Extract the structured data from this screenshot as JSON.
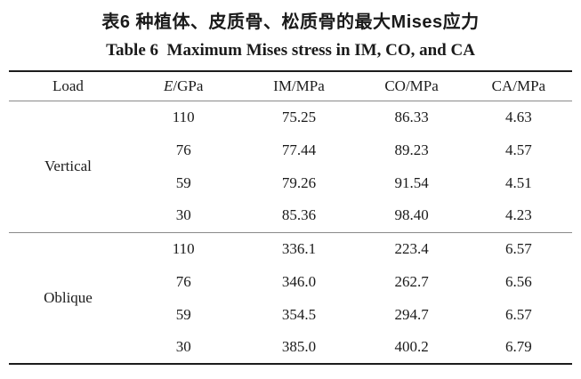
{
  "page": {
    "title_zh": "表6 种植体、皮质骨、松质骨的最大Mises应力",
    "title_en": "Table 6  Maximum Mises stress in IM, CO, and CA"
  },
  "header": {
    "load": "Load",
    "e_italic": "E",
    "e_unit": "/GPa",
    "im": "IM/MPa",
    "co": "CO/MPa",
    "ca": "CA/MPa"
  },
  "sections": [
    {
      "load_label": "Vertical",
      "rows": [
        {
          "e": "110",
          "im": "75.25",
          "co": "86.33",
          "ca": "4.63"
        },
        {
          "e": "76",
          "im": "77.44",
          "co": "89.23",
          "ca": "4.57"
        },
        {
          "e": "59",
          "im": "79.26",
          "co": "91.54",
          "ca": "4.51"
        },
        {
          "e": "30",
          "im": "85.36",
          "co": "98.40",
          "ca": "4.23"
        }
      ]
    },
    {
      "load_label": "Oblique",
      "rows": [
        {
          "e": "110",
          "im": "336.1",
          "co": "223.4",
          "ca": "6.57"
        },
        {
          "e": "76",
          "im": "346.0",
          "co": "262.7",
          "ca": "6.56"
        },
        {
          "e": "59",
          "im": "354.5",
          "co": "294.7",
          "ca": "6.57"
        },
        {
          "e": "30",
          "im": "385.0",
          "co": "400.2",
          "ca": "6.79"
        }
      ]
    }
  ],
  "chart_data": {
    "type": "table",
    "title": "Table 6 Maximum Mises stress in IM, CO, and CA",
    "title_zh": "表6 种植体、皮质骨、松质骨的最大Mises应力",
    "columns": [
      "Load",
      "E/GPa",
      "IM/MPa",
      "CO/MPa",
      "CA/MPa"
    ],
    "rows": [
      [
        "Vertical",
        110,
        75.25,
        86.33,
        4.63
      ],
      [
        "Vertical",
        76,
        77.44,
        89.23,
        4.57
      ],
      [
        "Vertical",
        59,
        79.26,
        91.54,
        4.51
      ],
      [
        "Vertical",
        30,
        85.36,
        98.4,
        4.23
      ],
      [
        "Oblique",
        110,
        336.1,
        223.4,
        6.57
      ],
      [
        "Oblique",
        76,
        346.0,
        262.7,
        6.56
      ],
      [
        "Oblique",
        59,
        354.5,
        294.7,
        6.57
      ],
      [
        "Oblique",
        30,
        385.0,
        400.2,
        6.79
      ]
    ]
  },
  "colors": {
    "text": "#1a1a1a",
    "rule_heavy": "#1c1c1c",
    "rule_light": "#8a8a8a",
    "background": "#ffffff"
  }
}
